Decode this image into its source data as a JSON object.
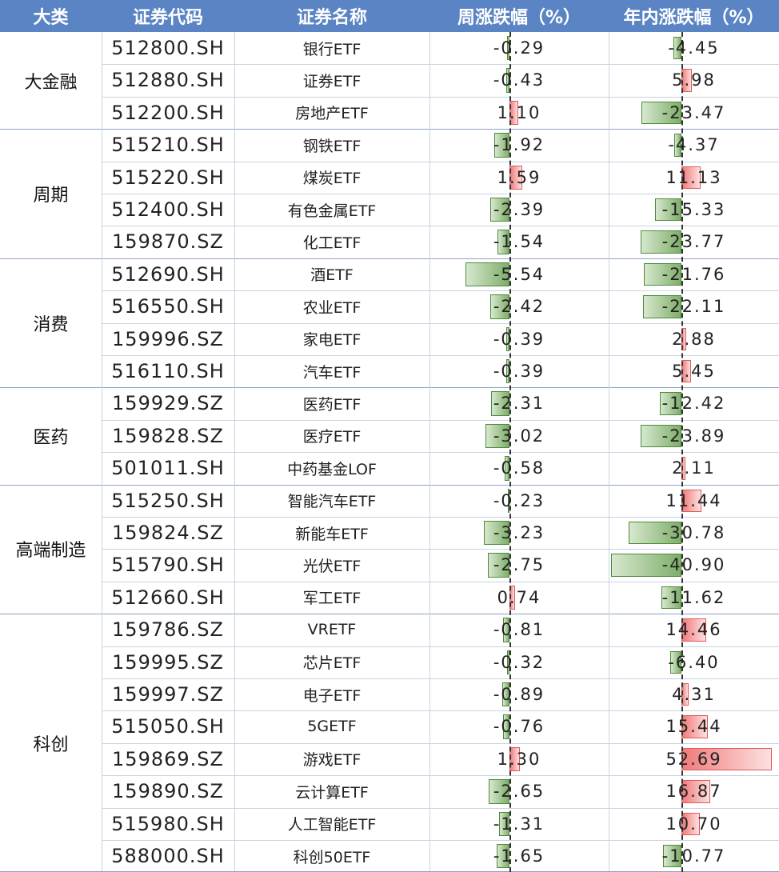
{
  "headers": {
    "category": "大类",
    "code": "证券代码",
    "name": "证券名称",
    "weekly": "周涨跌幅（%）",
    "ytd": "年内涨跌幅（%）"
  },
  "colors": {
    "header_bg": "#5b84c4",
    "negative_bar": "#7fae6a",
    "positive_bar": "#f07a7a"
  },
  "chart_data": {
    "type": "table",
    "columns": [
      "大类",
      "证券代码",
      "证券名称",
      "周涨跌幅（%）",
      "年内涨跌幅（%）"
    ],
    "groups": [
      {
        "name": "大金融",
        "rows": [
          {
            "code": "512800.SH",
            "name": "银行ETF",
            "weekly": -0.29,
            "ytd": -4.45
          },
          {
            "code": "512880.SH",
            "name": "证券ETF",
            "weekly": -0.43,
            "ytd": 5.98
          },
          {
            "code": "512200.SH",
            "name": "房地产ETF",
            "weekly": 1.1,
            "ytd": -23.47
          }
        ]
      },
      {
        "name": "周期",
        "rows": [
          {
            "code": "515210.SH",
            "name": "钢铁ETF",
            "weekly": -1.92,
            "ytd": -4.37
          },
          {
            "code": "515220.SH",
            "name": "煤炭ETF",
            "weekly": 1.59,
            "ytd": 11.13
          },
          {
            "code": "512400.SH",
            "name": "有色金属ETF",
            "weekly": -2.39,
            "ytd": -15.33
          },
          {
            "code": "159870.SZ",
            "name": "化工ETF",
            "weekly": -1.54,
            "ytd": -23.77
          }
        ]
      },
      {
        "name": "消费",
        "rows": [
          {
            "code": "512690.SH",
            "name": "酒ETF",
            "weekly": -5.54,
            "ytd": -21.76
          },
          {
            "code": "516550.SH",
            "name": "农业ETF",
            "weekly": -2.42,
            "ytd": -22.11
          },
          {
            "code": "159996.SZ",
            "name": "家电ETF",
            "weekly": -0.39,
            "ytd": 2.88
          },
          {
            "code": "516110.SH",
            "name": "汽车ETF",
            "weekly": -0.39,
            "ytd": 5.45
          }
        ]
      },
      {
        "name": "医药",
        "rows": [
          {
            "code": "159929.SZ",
            "name": "医药ETF",
            "weekly": -2.31,
            "ytd": -12.42
          },
          {
            "code": "159828.SZ",
            "name": "医疗ETF",
            "weekly": -3.02,
            "ytd": -23.89
          },
          {
            "code": "501011.SH",
            "name": "中药基金LOF",
            "weekly": -0.58,
            "ytd": 2.11
          }
        ]
      },
      {
        "name": "高端制造",
        "rows": [
          {
            "code": "515250.SH",
            "name": "智能汽车ETF",
            "weekly": -0.23,
            "ytd": 11.44
          },
          {
            "code": "159824.SZ",
            "name": "新能车ETF",
            "weekly": -3.23,
            "ytd": -30.78
          },
          {
            "code": "515790.SH",
            "name": "光伏ETF",
            "weekly": -2.75,
            "ytd": -40.9
          },
          {
            "code": "512660.SH",
            "name": "军工ETF",
            "weekly": 0.74,
            "ytd": -11.62
          }
        ]
      },
      {
        "name": "科创",
        "rows": [
          {
            "code": "159786.SZ",
            "name": "VRETF",
            "weekly": -0.81,
            "ytd": 14.46
          },
          {
            "code": "159995.SZ",
            "name": "芯片ETF",
            "weekly": -0.32,
            "ytd": -6.4
          },
          {
            "code": "159997.SZ",
            "name": "电子ETF",
            "weekly": -0.89,
            "ytd": 4.31
          },
          {
            "code": "515050.SH",
            "name": "5GETF",
            "weekly": -0.76,
            "ytd": 15.44
          },
          {
            "code": "159869.SZ",
            "name": "游戏ETF",
            "weekly": 1.3,
            "ytd": 52.69
          },
          {
            "code": "159890.SZ",
            "name": "云计算ETF",
            "weekly": -2.65,
            "ytd": 16.87
          },
          {
            "code": "515980.SH",
            "name": "人工智能ETF",
            "weekly": -1.31,
            "ytd": 10.7
          },
          {
            "code": "588000.SH",
            "name": "科创50ETF",
            "weekly": -1.65,
            "ytd": -10.77
          }
        ]
      }
    ]
  }
}
